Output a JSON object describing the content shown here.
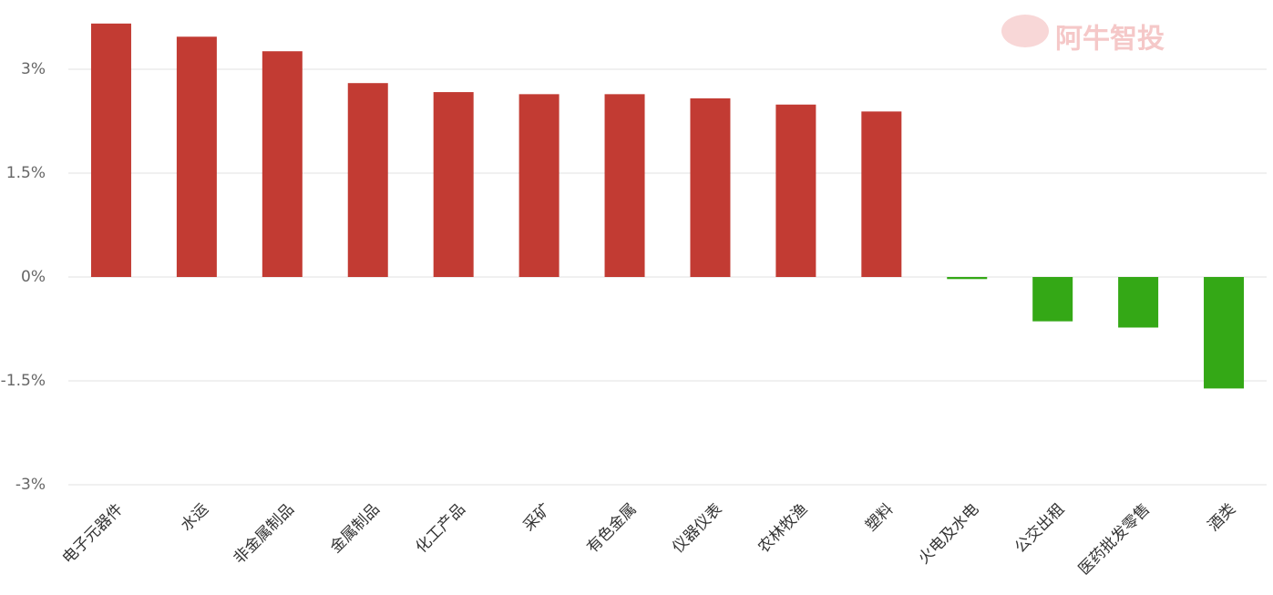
{
  "chart_data": {
    "type": "bar",
    "watermark": "阿牛智投",
    "categories": [
      "电子元器件",
      "水运",
      "非金属制品",
      "金属制品",
      "化工产品",
      "采矿",
      "有色金属",
      "仪器仪表",
      "农林牧渔",
      "塑料",
      "火电及水电",
      "公交出租",
      "医药批发零售",
      "酒类"
    ],
    "values": [
      3.66,
      3.47,
      3.26,
      2.8,
      2.67,
      2.64,
      2.64,
      2.58,
      2.49,
      2.39,
      -0.03,
      -0.64,
      -0.73,
      -1.61
    ],
    "colors": [
      "#c23b33",
      "#c23b33",
      "#c23b33",
      "#c23b33",
      "#c23b33",
      "#c23b33",
      "#c23b33",
      "#c23b33",
      "#c23b33",
      "#c23b33",
      "#34a816",
      "#34a816",
      "#34a816",
      "#34a816"
    ],
    "ylim": [
      -3,
      4
    ],
    "yticks": [
      {
        "value": -3,
        "label": "-3%"
      },
      {
        "value": -1.5,
        "label": "-1.5%"
      },
      {
        "value": 0,
        "label": "0%"
      },
      {
        "value": 1.5,
        "label": "1.5%"
      },
      {
        "value": 3,
        "label": "3%"
      }
    ],
    "grid": true
  }
}
